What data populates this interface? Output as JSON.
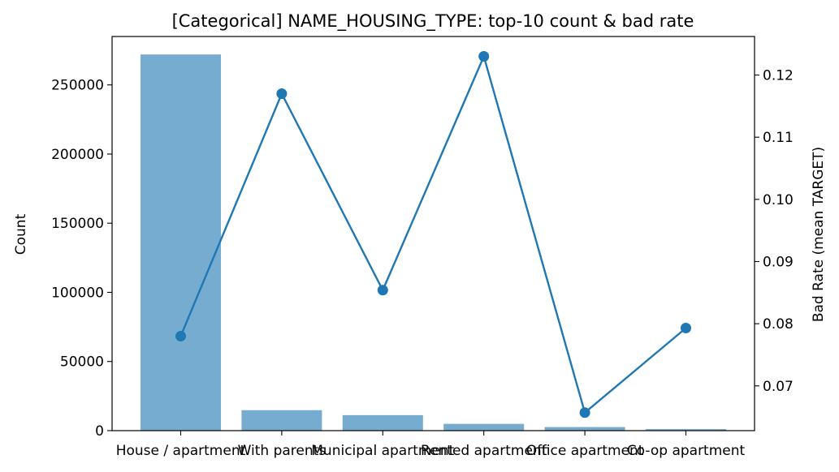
{
  "chart_data": {
    "type": "bar",
    "title": "[Categorical] NAME_HOUSING_TYPE: top-10 count & bad rate",
    "categories": [
      "House / apartment",
      "With parents",
      "Municipal apartment",
      "Rented apartment",
      "Office apartment",
      "Co-op apartment"
    ],
    "ylabel": "Count",
    "y2label": "Bad Rate (mean TARGET)",
    "ylim": [
      0,
      285000
    ],
    "y2lim": [
      0.0628,
      0.1262
    ],
    "yticks": [
      0,
      50000,
      100000,
      150000,
      200000,
      250000
    ],
    "y2ticks": [
      0.07,
      0.08,
      0.09,
      0.1,
      0.11,
      0.12
    ],
    "y2tick_labels": [
      "0.07",
      "0.08",
      "0.09",
      "0.10",
      "0.11",
      "0.12"
    ],
    "grid": false,
    "series": [
      {
        "type": "bar",
        "axis": "left",
        "color": "#77acd1",
        "values": [
          272000,
          14800,
          11200,
          4900,
          2600,
          1100
        ]
      },
      {
        "type": "line",
        "axis": "right",
        "color": "#1f77b4",
        "values": [
          0.078,
          0.117,
          0.0854,
          0.123,
          0.0657,
          0.0793
        ]
      }
    ]
  }
}
